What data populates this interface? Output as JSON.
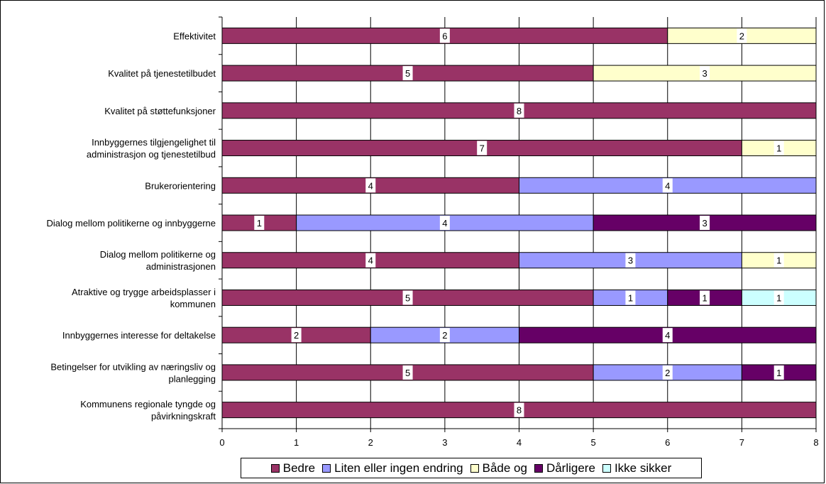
{
  "chart_data": {
    "type": "bar",
    "orientation": "horizontal",
    "stacked": true,
    "categories": [
      "Effektivitet",
      "Kvalitet på tjenestetilbudet",
      "Kvalitet på støttefunksjoner",
      "Innbyggernes tilgjengelighet til administrasjon og tjenestetilbud",
      "Brukerorientering",
      "Dialog mellom politikerne og innbyggerne",
      "Dialog mellom politikerne og administrasjonen",
      "Atraktive og trygge arbeidsplasser i kommunen",
      "Innbyggernes interesse for deltakelse",
      "Betingelser for utvikling av næringsliv og planlegging",
      "Kommunens regionale tyngde og påvirkningskraft"
    ],
    "category_lines": [
      [
        "Effektivitet"
      ],
      [
        "Kvalitet på tjenestetilbudet"
      ],
      [
        "Kvalitet på støttefunksjoner"
      ],
      [
        "Innbyggernes tilgjengelighet til",
        "administrasjon og tjenestetilbud"
      ],
      [
        "Brukerorientering"
      ],
      [
        "Dialog mellom politikerne og innbyggerne"
      ],
      [
        "Dialog mellom politikerne og",
        "administrasjonen"
      ],
      [
        "Atraktive og trygge arbeidsplasser i",
        "kommunen"
      ],
      [
        "Innbyggernes interesse for deltakelse"
      ],
      [
        "Betingelser for utvikling av næringsliv og",
        "planlegging"
      ],
      [
        "Kommunens regionale tyngde og",
        "påvirkningskraft"
      ]
    ],
    "series": [
      {
        "name": "Bedre",
        "color": "#993366",
        "values": [
          6,
          5,
          8,
          7,
          4,
          1,
          4,
          5,
          2,
          5,
          8
        ]
      },
      {
        "name": "Liten eller ingen endring",
        "color": "#9999ff",
        "values": [
          0,
          0,
          0,
          0,
          4,
          4,
          3,
          1,
          2,
          2,
          0
        ]
      },
      {
        "name": "Både og",
        "color": "#ffffcc",
        "values": [
          2,
          3,
          0,
          1,
          0,
          0,
          1,
          0,
          0,
          0,
          0
        ]
      },
      {
        "name": "Dårligere",
        "color": "#660066",
        "values": [
          0,
          0,
          0,
          0,
          0,
          3,
          0,
          1,
          4,
          1,
          0
        ]
      },
      {
        "name": "Ikke sikker",
        "color": "#ccffff",
        "values": [
          0,
          0,
          0,
          0,
          0,
          0,
          0,
          1,
          0,
          0,
          0
        ]
      }
    ],
    "xlim": [
      0,
      8
    ],
    "xticks": [
      0,
      1,
      2,
      3,
      4,
      5,
      6,
      7,
      8
    ],
    "grid": "vertical",
    "data_labels": true,
    "legend_position": "bottom"
  }
}
